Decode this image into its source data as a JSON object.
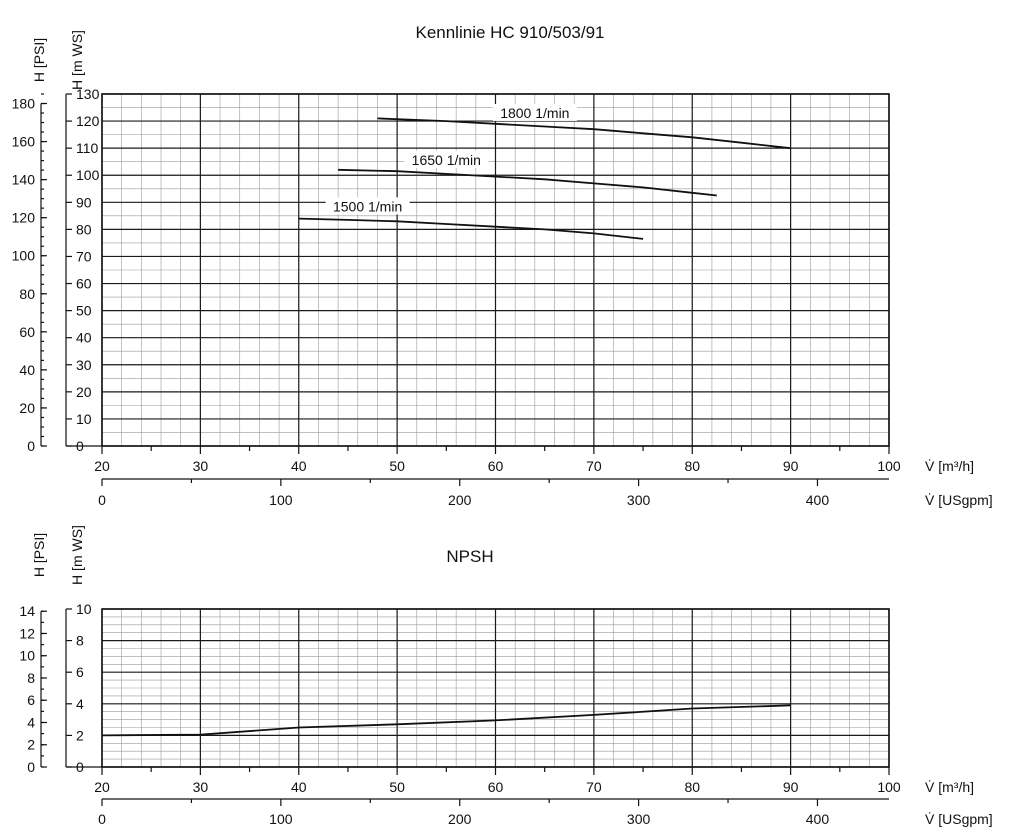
{
  "chart_data": [
    {
      "type": "line",
      "title": "Kennlinie HC 910/503/91",
      "xlabel": "V̇ [m³/h]",
      "xlabel2": "V̇ [USgpm]",
      "ylabel": "H [m WS]",
      "ylabel2": "H [PSI]",
      "xlim": [
        20,
        100
      ],
      "ylim": [
        0,
        130
      ],
      "xlim2": [
        0,
        440
      ],
      "ylim2": [
        0,
        185
      ],
      "x_ticks": [
        20,
        30,
        40,
        50,
        60,
        70,
        80,
        90,
        100
      ],
      "y_ticks": [
        0,
        10,
        20,
        30,
        40,
        50,
        60,
        70,
        80,
        90,
        100,
        110,
        120,
        130
      ],
      "x2_ticks": [
        0,
        100,
        200,
        300,
        400
      ],
      "y2_ticks": [
        0,
        20,
        40,
        60,
        80,
        100,
        120,
        140,
        160,
        180
      ],
      "grid": true,
      "series": [
        {
          "name": "1800 1/min",
          "x": [
            48,
            55,
            60,
            65,
            70,
            75,
            80,
            85,
            90
          ],
          "y": [
            121,
            120,
            119,
            118,
            117,
            115.5,
            114,
            112,
            110
          ]
        },
        {
          "name": "1650 1/min",
          "x": [
            44,
            50,
            55,
            60,
            65,
            70,
            75,
            80,
            82.5
          ],
          "y": [
            102,
            101.5,
            100.5,
            99.5,
            98.5,
            97,
            95.5,
            93.5,
            92.5
          ]
        },
        {
          "name": "1500 1/min",
          "x": [
            40,
            45,
            50,
            55,
            60,
            65,
            70,
            75
          ],
          "y": [
            84,
            83.5,
            83,
            82,
            81,
            80,
            78.5,
            76.5
          ]
        }
      ]
    },
    {
      "type": "line",
      "title": "NPSH",
      "xlabel": "V̇ [m³/h]",
      "xlabel2": "V̇ [USgpm]",
      "ylabel": "H [m WS]",
      "ylabel2": "H [PSI]",
      "xlim": [
        20,
        100
      ],
      "ylim": [
        0,
        10
      ],
      "xlim2": [
        0,
        440
      ],
      "ylim2": [
        0,
        14.2
      ],
      "x_ticks": [
        20,
        30,
        40,
        50,
        60,
        70,
        80,
        90,
        100
      ],
      "y_ticks": [
        0,
        2,
        4,
        6,
        8,
        10
      ],
      "x2_ticks": [
        0,
        100,
        200,
        300,
        400
      ],
      "y2_ticks": [
        0,
        2,
        4,
        6,
        8,
        10,
        12,
        14
      ],
      "grid": true,
      "series": [
        {
          "name": "",
          "x": [
            20,
            30,
            40,
            50,
            60,
            70,
            80,
            90
          ],
          "y": [
            2.0,
            2.05,
            2.5,
            2.7,
            2.95,
            3.3,
            3.7,
            3.9
          ]
        }
      ]
    }
  ]
}
